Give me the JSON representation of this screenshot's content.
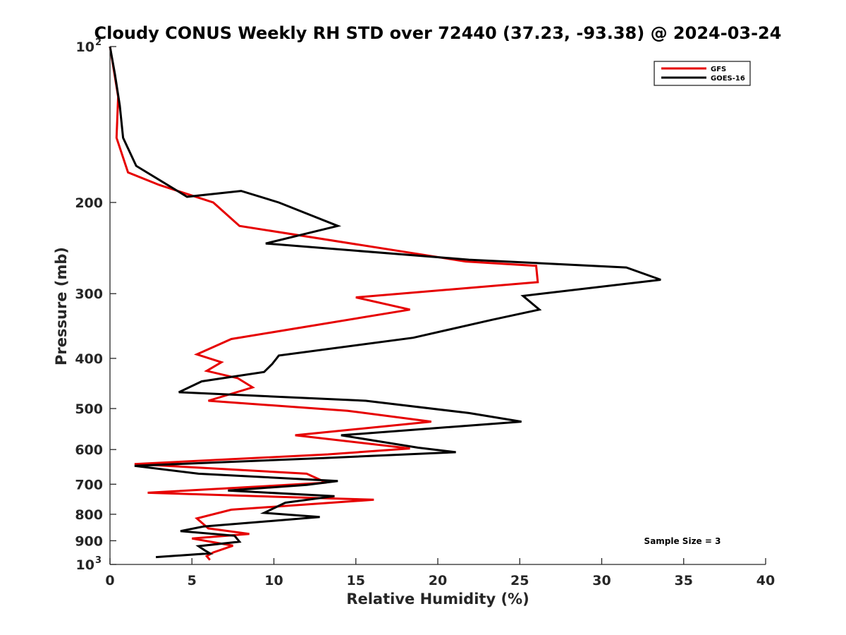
{
  "chart_data": {
    "type": "line",
    "title": "Cloudy CONUS Weekly RH STD over 72440 (37.23, -93.38) @ 2024-03-24",
    "xlabel": "Relative Humidity (%)",
    "ylabel": "Pressure (mb)",
    "xlim": [
      0,
      40
    ],
    "ylim": [
      100,
      1000
    ],
    "y_scale": "log",
    "y_reversed": true,
    "grid": false,
    "legend_position": "top-right",
    "x_ticks": [
      0,
      5,
      10,
      15,
      20,
      25,
      30,
      35,
      40
    ],
    "x_tick_labels": [
      "0",
      "5",
      "10",
      "15",
      "20",
      "25",
      "30",
      "35",
      "40"
    ],
    "y_ticks": [
      100,
      200,
      300,
      400,
      500,
      600,
      700,
      800,
      900,
      1000
    ],
    "y_tick_labels": [
      {
        "base": "10",
        "exp": "2"
      },
      {
        "text": "200"
      },
      {
        "text": "300"
      },
      {
        "text": "400"
      },
      {
        "text": "500"
      },
      {
        "text": "600"
      },
      {
        "text": "700"
      },
      {
        "text": "800"
      },
      {
        "text": "900"
      },
      {
        "base": "10",
        "exp": "3"
      }
    ],
    "annotation": "Sample Size = 3",
    "series": [
      {
        "name": "GFS",
        "color": "#e60000",
        "points": [
          [
            0.0,
            100
          ],
          [
            0.5,
            125
          ],
          [
            0.4,
            150
          ],
          [
            1.1,
            175
          ],
          [
            3.0,
            185
          ],
          [
            6.3,
            200
          ],
          [
            7.9,
            222
          ],
          [
            21.7,
            260
          ],
          [
            26.0,
            265
          ],
          [
            26.1,
            285
          ],
          [
            15.0,
            305
          ],
          [
            18.3,
            322
          ],
          [
            7.4,
            367
          ],
          [
            5.3,
            393
          ],
          [
            6.8,
            407
          ],
          [
            5.9,
            423
          ],
          [
            7.8,
            437
          ],
          [
            8.7,
            455
          ],
          [
            6.0,
            483
          ],
          [
            14.5,
            505
          ],
          [
            19.6,
            530
          ],
          [
            11.3,
            563
          ],
          [
            18.3,
            597
          ],
          [
            13.3,
            613
          ],
          [
            1.5,
            640
          ],
          [
            12.0,
            668
          ],
          [
            13.2,
            695
          ],
          [
            9.8,
            705
          ],
          [
            2.3,
            727
          ],
          [
            16.1,
            750
          ],
          [
            7.4,
            784
          ],
          [
            5.3,
            815
          ],
          [
            6.0,
            852
          ],
          [
            8.5,
            873
          ],
          [
            5.0,
            891
          ],
          [
            7.5,
            920
          ],
          [
            6.3,
            948
          ],
          [
            5.9,
            964
          ],
          [
            6.1,
            980
          ]
        ]
      },
      {
        "name": "GOES-16",
        "color": "#000000",
        "points": [
          [
            0.0,
            100
          ],
          [
            0.3,
            113
          ],
          [
            0.6,
            130
          ],
          [
            0.8,
            150
          ],
          [
            1.6,
            170
          ],
          [
            4.7,
            195
          ],
          [
            8.0,
            190
          ],
          [
            10.3,
            200
          ],
          [
            13.9,
            222
          ],
          [
            9.5,
            240
          ],
          [
            21.9,
            258
          ],
          [
            31.5,
            267
          ],
          [
            33.6,
            282
          ],
          [
            25.2,
            303
          ],
          [
            26.2,
            322
          ],
          [
            23.3,
            337
          ],
          [
            18.5,
            365
          ],
          [
            10.3,
            395
          ],
          [
            9.9,
            410
          ],
          [
            9.4,
            425
          ],
          [
            5.6,
            443
          ],
          [
            4.2,
            465
          ],
          [
            15.6,
            483
          ],
          [
            21.9,
            510
          ],
          [
            25.1,
            530
          ],
          [
            14.1,
            563
          ],
          [
            18.8,
            595
          ],
          [
            21.1,
            607
          ],
          [
            13.0,
            623
          ],
          [
            1.5,
            645
          ],
          [
            5.4,
            668
          ],
          [
            13.9,
            690
          ],
          [
            12.0,
            702
          ],
          [
            7.2,
            720
          ],
          [
            13.7,
            738
          ],
          [
            10.7,
            760
          ],
          [
            9.4,
            795
          ],
          [
            12.8,
            810
          ],
          [
            5.7,
            845
          ],
          [
            4.3,
            862
          ],
          [
            7.6,
            880
          ],
          [
            7.9,
            904
          ],
          [
            5.4,
            922
          ],
          [
            5.8,
            940
          ],
          [
            6.1,
            952
          ],
          [
            2.8,
            968
          ]
        ]
      }
    ]
  }
}
